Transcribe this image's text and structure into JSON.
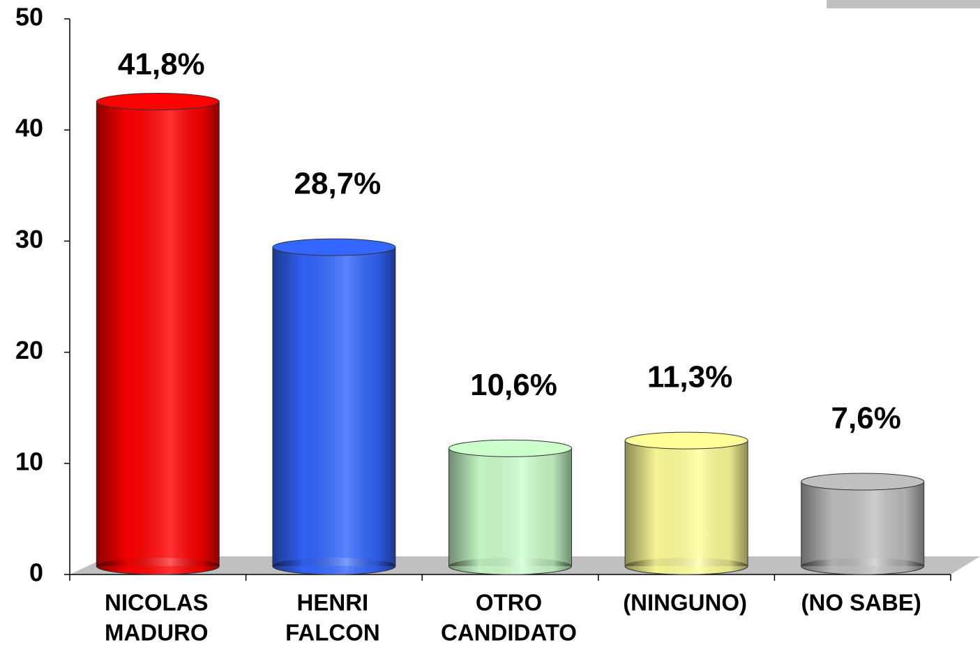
{
  "chart_data": {
    "type": "bar",
    "categories": [
      [
        "NICOLAS",
        "MADURO"
      ],
      [
        "HENRI",
        "FALCON"
      ],
      [
        "OTRO",
        "CANDIDATO"
      ],
      [
        "(NINGUNO)"
      ],
      [
        "(NO SABE)"
      ]
    ],
    "values": [
      41.8,
      28.7,
      10.6,
      11.3,
      7.6
    ],
    "value_labels": [
      "41,8%",
      "28,7%",
      "10,6%",
      "11,3%",
      "7,6%"
    ],
    "colors": [
      "#ff0000",
      "#3366ff",
      "#ccffcc",
      "#ffff99",
      "#c0c0c0"
    ],
    "ylim": [
      0,
      50
    ],
    "yticks": [
      0,
      10,
      20,
      30,
      40,
      50
    ],
    "grid": false
  }
}
